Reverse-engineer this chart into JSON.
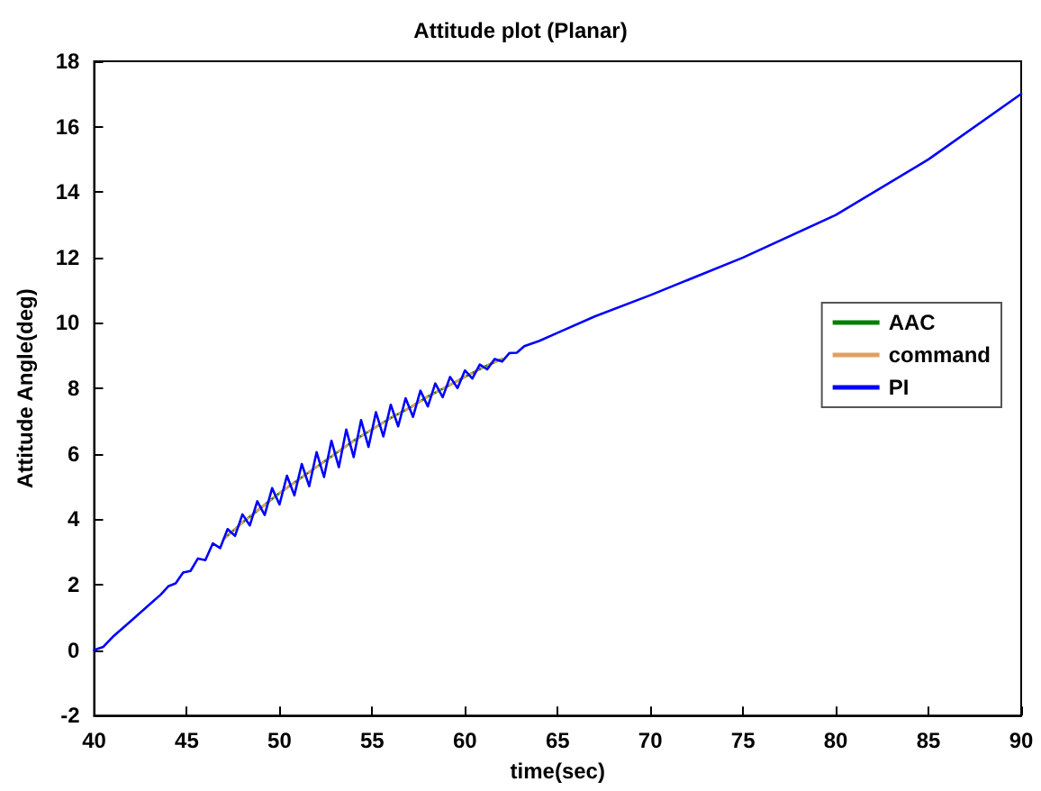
{
  "chart_data": {
    "type": "line",
    "title": "Attitude plot (Planar)",
    "xlabel": "time(sec)",
    "ylabel": "Attitude Angle(deg)",
    "xlim": [
      40,
      90
    ],
    "xticks": [
      40,
      45,
      50,
      55,
      60,
      65,
      70,
      75,
      80,
      85,
      90
    ],
    "ylim": [
      -2,
      18
    ],
    "yticks": [
      -2,
      0,
      2,
      4,
      6,
      8,
      10,
      12,
      14,
      16,
      18
    ],
    "grid": false,
    "legend": "right",
    "marker": "none",
    "series": [
      {
        "name": "AAC",
        "color": "#008000",
        "line_style": "solid",
        "x": [
          47,
          48,
          49,
          50,
          51,
          52,
          53,
          54,
          55,
          56,
          57,
          58,
          59,
          60,
          61,
          62
        ],
        "values": [
          3.4,
          3.9,
          4.35,
          4.8,
          5.2,
          5.6,
          6.0,
          6.4,
          6.75,
          7.1,
          7.4,
          7.75,
          8.05,
          8.35,
          8.65,
          8.9
        ]
      },
      {
        "name": "command",
        "color": "#e0a060",
        "line_style": "dashed",
        "x": [
          47,
          48,
          49,
          50,
          51,
          52,
          53,
          54,
          55,
          56,
          57,
          58,
          59,
          60,
          61,
          62
        ],
        "values": [
          3.4,
          3.9,
          4.35,
          4.8,
          5.2,
          5.6,
          6.0,
          6.4,
          6.75,
          7.1,
          7.4,
          7.75,
          8.05,
          8.35,
          8.65,
          8.9
        ]
      },
      {
        "name": "PI",
        "color": "#0000ff",
        "line_style": "solid",
        "x": [
          40,
          40.5,
          41,
          42,
          43,
          43.6,
          44,
          44.4,
          44.8,
          45.2,
          45.6,
          46,
          46.4,
          46.8,
          47.2,
          47.6,
          48,
          48.4,
          48.8,
          49.2,
          49.6,
          50,
          50.4,
          50.8,
          51.2,
          51.6,
          52,
          52.4,
          52.8,
          53.2,
          53.6,
          54,
          54.4,
          54.8,
          55.2,
          55.6,
          56,
          56.4,
          56.8,
          57.2,
          57.6,
          58,
          58.4,
          58.8,
          59.2,
          59.6,
          60,
          60.4,
          60.8,
          61.2,
          61.6,
          62,
          62.4,
          62.8,
          63.2,
          64,
          65,
          67,
          70,
          75,
          80,
          85,
          90
        ],
        "values": [
          0,
          0.1,
          0.4,
          0.9,
          1.4,
          1.7,
          1.95,
          2.04,
          2.37,
          2.42,
          2.8,
          2.75,
          3.26,
          3.12,
          3.7,
          3.49,
          4.15,
          3.81,
          4.55,
          4.13,
          4.95,
          4.45,
          5.33,
          4.73,
          5.69,
          5.01,
          6.05,
          5.29,
          6.4,
          5.59,
          6.74,
          5.9,
          7.03,
          6.21,
          7.27,
          6.53,
          7.5,
          6.84,
          7.7,
          7.13,
          7.93,
          7.45,
          8.15,
          7.73,
          8.35,
          8.01,
          8.55,
          8.3,
          8.73,
          8.58,
          8.9,
          8.82,
          9.08,
          9.09,
          9.29,
          9.45,
          9.7,
          10.2,
          10.85,
          12.0,
          13.3,
          15.0,
          17.0
        ]
      }
    ]
  }
}
